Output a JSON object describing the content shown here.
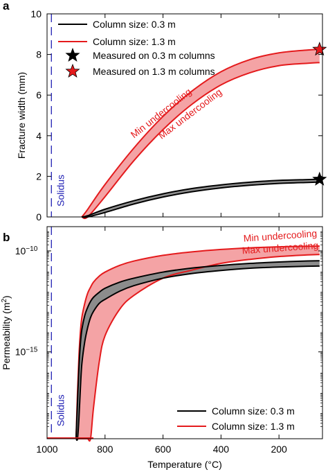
{
  "chart_data": [
    {
      "panel_label": "a",
      "type": "line",
      "xlabel": "",
      "ylabel": "Fracture width (mm)",
      "xlim": [
        1000,
        50
      ],
      "ylim": [
        0,
        10
      ],
      "x_ticks": [
        1000,
        800,
        600,
        400,
        200
      ],
      "y_ticks": [
        0,
        2,
        4,
        6,
        8,
        10
      ],
      "grid": false,
      "legend_position": "top-left",
      "x": [
        880,
        860,
        800,
        700,
        600,
        500,
        400,
        300,
        200,
        100,
        60
      ],
      "series": [
        {
          "name": "Column size: 0.3 m",
          "color": "#000000",
          "fill": "#909090",
          "upper": [
            0.0,
            0.06,
            0.38,
            0.8,
            1.14,
            1.4,
            1.58,
            1.71,
            1.8,
            1.84,
            1.86
          ],
          "lower": [
            0.0,
            0.0,
            0.22,
            0.64,
            0.98,
            1.24,
            1.43,
            1.56,
            1.65,
            1.7,
            1.72
          ]
        },
        {
          "name": "Column size: 1.3 m",
          "color": "#e41a1c",
          "fill": "#f4a3a5",
          "upper": [
            0.0,
            0.37,
            1.6,
            3.4,
            4.95,
            6.2,
            7.15,
            7.75,
            8.08,
            8.22,
            8.25
          ],
          "lower": [
            0.0,
            0.0,
            1.0,
            2.78,
            4.3,
            5.55,
            6.5,
            7.1,
            7.45,
            7.57,
            7.6
          ]
        }
      ],
      "measured_points": [
        {
          "name": "Measured on 0.3 m columns",
          "x": 60,
          "y": 1.85,
          "color": "#000000"
        },
        {
          "name": "Measured on 1.3 m columns",
          "x": 60,
          "y": 8.25,
          "color": "#e41a1c"
        }
      ],
      "solidus_x": 985,
      "annotations": {
        "solidus": "Solidus",
        "min": "Min undercooling",
        "max": "Max undercooling"
      }
    },
    {
      "panel_label": "b",
      "type": "line",
      "xlabel": "Temperature (°C)",
      "ylabel": "Permeability (m²)",
      "ylabel_pre": "Permeability (m",
      "ylabel_sup": "2",
      "ylabel_post": ")",
      "yscale": "log",
      "xlim": [
        1000,
        50
      ],
      "ylim_log10": [
        -19.3,
        -8.8
      ],
      "x_ticks": [
        1000,
        800,
        600,
        400,
        200
      ],
      "y_ticks_exponents": [
        -10,
        -15
      ],
      "y_tick_base": "10",
      "grid": false,
      "legend_position": "bottom-right",
      "x": [
        900,
        895,
        890,
        885,
        880,
        870,
        860,
        850,
        840,
        820,
        800,
        750,
        700,
        600,
        500,
        400,
        300,
        200,
        100,
        60
      ],
      "series": [
        {
          "name": "Column size: 0.3 m",
          "color": "#000000",
          "fill": "#8c8c8c",
          "upper_log10": [
            -19.3,
            -17.5,
            -15.8,
            -14.6,
            -13.9,
            -13.2,
            -12.8,
            -12.5,
            -12.3,
            -12.05,
            -11.85,
            -11.55,
            -11.35,
            -11.05,
            -10.85,
            -10.72,
            -10.62,
            -10.55,
            -10.5,
            -10.49
          ],
          "lower_log10": [
            -19.3,
            -19.3,
            -18.3,
            -16.8,
            -15.6,
            -14.5,
            -13.8,
            -13.3,
            -13.0,
            -12.6,
            -12.4,
            -12.0,
            -11.72,
            -11.35,
            -11.12,
            -10.97,
            -10.86,
            -10.8,
            -10.76,
            -10.75
          ]
        },
        {
          "name": "Column size: 1.3 m",
          "color": "#e41a1c",
          "fill": "#f4a3a5",
          "upper_log10": [
            -19.3,
            -17.0,
            -15.2,
            -14.0,
            -13.3,
            -12.6,
            -12.1,
            -11.8,
            -11.55,
            -11.25,
            -11.05,
            -10.72,
            -10.5,
            -10.22,
            -10.05,
            -9.93,
            -9.85,
            -9.8,
            -9.77,
            -9.76
          ],
          "lower_log10": [
            -19.3,
            -19.3,
            -19.3,
            -19.3,
            -19.3,
            -19.3,
            -19.3,
            -19.3,
            -17.8,
            -15.5,
            -14.2,
            -12.9,
            -12.2,
            -11.35,
            -10.95,
            -10.62,
            -10.42,
            -10.28,
            -10.2,
            -10.18
          ]
        }
      ],
      "solidus_x": 985,
      "annotations": {
        "solidus": "Solidus",
        "min": "Min undercooling",
        "max": "Max undercooling"
      }
    }
  ]
}
